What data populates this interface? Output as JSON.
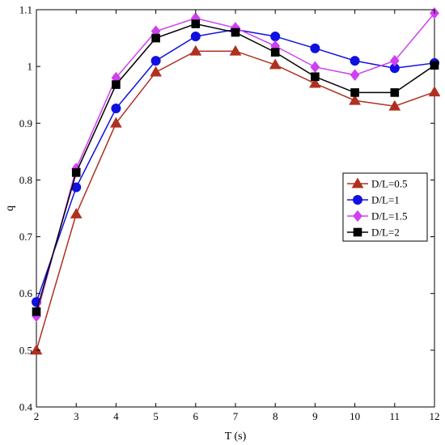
{
  "chart_data": {
    "type": "line",
    "title": "",
    "xlabel": "T (s)",
    "ylabel": "q",
    "xlim": [
      2,
      12
    ],
    "ylim": [
      0.4,
      1.1
    ],
    "xticks": [
      "2",
      "3",
      "4",
      "5",
      "6",
      "7",
      "8",
      "9",
      "10",
      "11",
      "12"
    ],
    "yticks": [
      "0.4",
      "0.5",
      "0.6",
      "0.7",
      "0.8",
      "0.9",
      "1",
      "1.1"
    ],
    "grid": false,
    "legend_position": "right",
    "x": [
      2,
      3,
      4,
      5,
      6,
      7,
      8,
      9,
      10,
      11,
      12
    ],
    "series": [
      {
        "name": "D/L=0.5",
        "color": "#b03020",
        "marker": "triangle",
        "values": [
          0.5,
          0.74,
          0.9,
          0.99,
          1.027,
          1.027,
          1.003,
          0.97,
          0.94,
          0.93,
          0.955
        ]
      },
      {
        "name": "D/L=1",
        "color": "#1010e0",
        "marker": "circle",
        "values": [
          0.585,
          0.787,
          0.926,
          1.01,
          1.053,
          1.065,
          1.053,
          1.032,
          1.01,
          0.997,
          1.006
        ]
      },
      {
        "name": "D/L=1.5",
        "color": "#d040f0",
        "marker": "diamond",
        "values": [
          0.56,
          0.82,
          0.98,
          1.062,
          1.085,
          1.068,
          1.036,
          0.999,
          0.985,
          1.01,
          1.094
        ]
      },
      {
        "name": "D/L=2",
        "color": "#000000",
        "marker": "square",
        "values": [
          0.568,
          0.813,
          0.968,
          1.05,
          1.075,
          1.06,
          1.025,
          0.982,
          0.954,
          0.954,
          1.002
        ]
      }
    ]
  }
}
